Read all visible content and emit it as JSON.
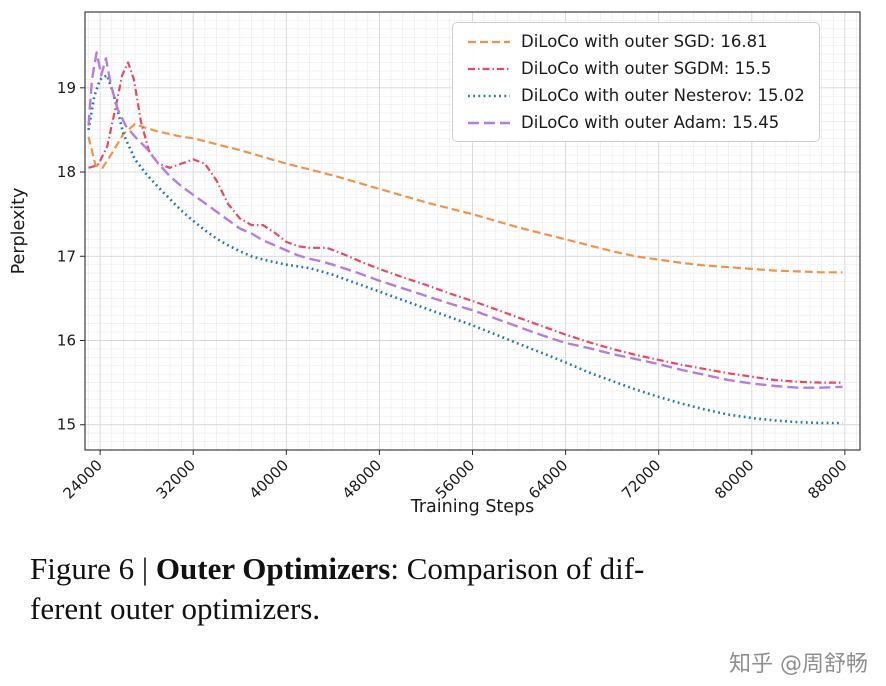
{
  "chart_data": {
    "type": "line",
    "title": "",
    "xlabel": "Training Steps",
    "ylabel": "Perplexity",
    "xlim": [
      22700,
      89300
    ],
    "ylim": [
      14.7,
      19.9
    ],
    "xticks": [
      24000,
      32000,
      40000,
      48000,
      56000,
      64000,
      72000,
      80000,
      88000
    ],
    "yticks": [
      15,
      16,
      17,
      18,
      19
    ],
    "grid": true,
    "x_minor_step": 1000,
    "y_minor_step": 0.1,
    "legend_position": "upper right",
    "series": [
      {
        "id": "sgd",
        "name": "DiLoCo with outer SGD: 16.81",
        "color": "#f0944d",
        "dash": "8 4",
        "width": 2.2,
        "x": [
          23000,
          23600,
          24200,
          25000,
          26000,
          27000,
          28000,
          29000,
          30000,
          31000,
          32000,
          34000,
          36000,
          38000,
          40000,
          42000,
          44000,
          46000,
          48000,
          50000,
          52000,
          54000,
          56000,
          58000,
          60000,
          62000,
          64000,
          66000,
          68000,
          70000,
          72000,
          74000,
          76000,
          78000,
          80000,
          82000,
          84000,
          86000,
          87800
        ],
        "y": [
          18.42,
          18.08,
          18.05,
          18.22,
          18.45,
          18.57,
          18.52,
          18.48,
          18.45,
          18.42,
          18.4,
          18.33,
          18.26,
          18.18,
          18.1,
          18.03,
          17.96,
          17.88,
          17.8,
          17.72,
          17.64,
          17.57,
          17.5,
          17.42,
          17.34,
          17.27,
          17.2,
          17.13,
          17.06,
          17.0,
          16.96,
          16.92,
          16.89,
          16.87,
          16.85,
          16.83,
          16.82,
          16.81,
          16.81
        ]
      },
      {
        "id": "sgdm",
        "name": "DiLoCo with outer SGDM: 15.5",
        "color": "#e8495f",
        "dash": "7 3 1.5 3",
        "width": 2.2,
        "x": [
          23000,
          23800,
          24600,
          25300,
          25900,
          26400,
          26900,
          27500,
          28200,
          29000,
          30000,
          31000,
          32000,
          33000,
          34000,
          35000,
          36000,
          37000,
          38000,
          39000,
          40000,
          41000,
          42000,
          43500,
          45000,
          46500,
          48000,
          50000,
          52000,
          54000,
          56000,
          58000,
          60000,
          62000,
          64000,
          66000,
          68000,
          70000,
          72000,
          74000,
          76000,
          78000,
          80000,
          82000,
          84000,
          86000,
          87800
        ],
        "y": [
          18.05,
          18.08,
          18.3,
          18.75,
          19.15,
          19.3,
          19.1,
          18.6,
          18.25,
          18.1,
          18.05,
          18.1,
          18.15,
          18.1,
          17.9,
          17.62,
          17.45,
          17.37,
          17.37,
          17.28,
          17.17,
          17.12,
          17.1,
          17.1,
          17.02,
          16.93,
          16.85,
          16.75,
          16.66,
          16.56,
          16.47,
          16.37,
          16.27,
          16.17,
          16.07,
          15.98,
          15.9,
          15.83,
          15.77,
          15.71,
          15.66,
          15.61,
          15.57,
          15.53,
          15.51,
          15.5,
          15.5
        ]
      },
      {
        "id": "nesterov",
        "name": "DiLoCo with outer Nesterov: 15.02",
        "color": "#1f77b4",
        "dash": "1.8 3.4",
        "width": 2.6,
        "x": [
          23000,
          23500,
          24000,
          24600,
          25200,
          26000,
          27000,
          28000,
          29000,
          30000,
          31000,
          32000,
          33000,
          34000,
          35000,
          36000,
          37000,
          38000,
          39000,
          40000,
          41000,
          42000,
          43000,
          44000,
          46000,
          48000,
          50000,
          52000,
          54000,
          56000,
          58000,
          60000,
          62000,
          64000,
          66000,
          68000,
          70000,
          72000,
          74000,
          76000,
          78000,
          80000,
          82000,
          84000,
          86000,
          87800
        ],
        "y": [
          18.5,
          18.9,
          19.1,
          19.15,
          18.9,
          18.45,
          18.15,
          17.97,
          17.82,
          17.68,
          17.54,
          17.42,
          17.31,
          17.21,
          17.13,
          17.06,
          17.0,
          16.96,
          16.93,
          16.9,
          16.88,
          16.86,
          16.82,
          16.78,
          16.68,
          16.58,
          16.48,
          16.38,
          16.28,
          16.18,
          16.07,
          15.96,
          15.85,
          15.74,
          15.62,
          15.52,
          15.42,
          15.33,
          15.25,
          15.18,
          15.12,
          15.08,
          15.05,
          15.03,
          15.02,
          15.02
        ]
      },
      {
        "id": "adam",
        "name": "DiLoCo with outer Adam: 15.45",
        "color": "#b57edb",
        "dash": "11 5",
        "width": 2.4,
        "x": [
          23000,
          23300,
          23700,
          24100,
          24500,
          24900,
          25500,
          26200,
          27000,
          28000,
          29000,
          30000,
          31000,
          32000,
          33000,
          34000,
          35000,
          36000,
          37000,
          38000,
          39000,
          40000,
          41000,
          42000,
          43000,
          44000,
          46000,
          48000,
          50000,
          52000,
          54000,
          56000,
          58000,
          60000,
          62000,
          64000,
          66000,
          68000,
          70000,
          72000,
          74000,
          76000,
          78000,
          80000,
          82000,
          84000,
          86000,
          87800
        ],
        "y": [
          18.55,
          19.1,
          19.42,
          19.15,
          19.35,
          19.05,
          18.75,
          18.55,
          18.42,
          18.28,
          18.1,
          17.95,
          17.83,
          17.73,
          17.63,
          17.53,
          17.43,
          17.33,
          17.27,
          17.19,
          17.13,
          17.07,
          17.01,
          16.97,
          16.94,
          16.9,
          16.81,
          16.71,
          16.62,
          16.53,
          16.44,
          16.36,
          16.26,
          16.16,
          16.06,
          15.97,
          15.91,
          15.84,
          15.78,
          15.72,
          15.65,
          15.59,
          15.53,
          15.49,
          15.46,
          15.44,
          15.44,
          15.45
        ]
      }
    ]
  },
  "caption": {
    "figure_label": "Figure 6 | ",
    "bold_text": "Outer Optimizers",
    "line1_rest": ": Comparison of dif-",
    "line2": "ferent outer optimizers."
  },
  "watermark": "知乎 @周舒畅"
}
